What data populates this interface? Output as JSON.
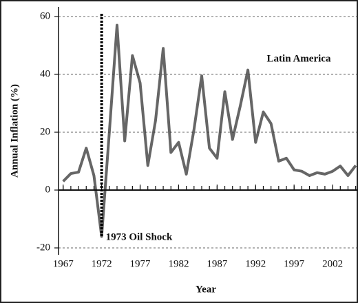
{
  "chart_data": {
    "type": "line",
    "x_label": "Year",
    "y_label": "Annual Inflation (%)",
    "x": [
      1967,
      1968,
      1969,
      1970,
      1971,
      1972,
      1973,
      1974,
      1975,
      1976,
      1977,
      1978,
      1979,
      1980,
      1981,
      1982,
      1983,
      1984,
      1985,
      1986,
      1987,
      1988,
      1989,
      1990,
      1991,
      1992,
      1993,
      1994,
      1995,
      1996,
      1997,
      1998,
      1999,
      2000,
      2001,
      2002,
      2003,
      2004,
      2005
    ],
    "series": [
      {
        "name": "Latin America",
        "color": "#666666",
        "values": [
          3,
          5.7,
          6.2,
          14.5,
          5,
          -16,
          20,
          57,
          17,
          46.5,
          37,
          8.5,
          24,
          49,
          13,
          16.5,
          5.5,
          21,
          39.5,
          14.5,
          11,
          34,
          17.5,
          29,
          41.5,
          16.5,
          27,
          23,
          10,
          11,
          7,
          6.5,
          5,
          6,
          5.5,
          6.5,
          8.3,
          5,
          8.5
        ]
      }
    ],
    "xlim": [
      1966.4,
      2005.3
    ],
    "ylim": [
      -20,
      60
    ],
    "xticks": [
      1967,
      1972,
      1977,
      1982,
      1987,
      1992,
      1997,
      2002
    ],
    "yticks": [
      -20,
      0,
      20,
      40,
      60
    ],
    "grid": true,
    "annotations": [
      {
        "text": "1973 Oil Shock",
        "x": 1972
      }
    ]
  }
}
